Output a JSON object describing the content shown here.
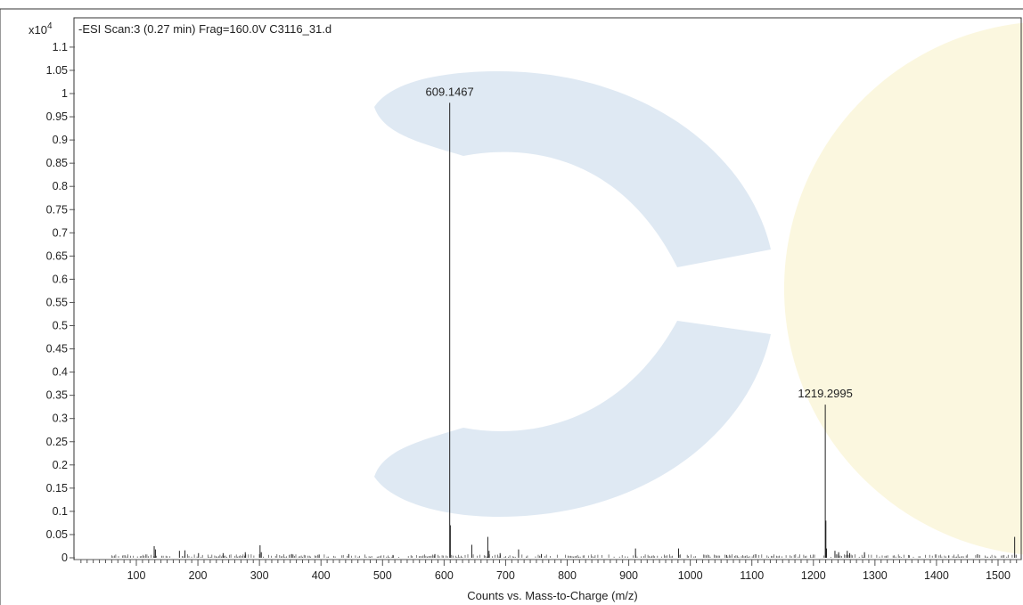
{
  "chart_data": {
    "type": "bar",
    "title": "-ESI Scan:3 (0.27 min) Frag=160.0V C3116_31.d",
    "xlabel": "Counts vs. Mass-to-Charge (m/z)",
    "ylabel": "",
    "y_multiplier_label": "x10",
    "y_multiplier_exp": "4",
    "xlim": [
      0,
      1530
    ],
    "ylim": [
      0,
      1.15
    ],
    "xticks": [
      100,
      200,
      300,
      400,
      500,
      600,
      700,
      800,
      900,
      1000,
      1100,
      1200,
      1300,
      1400,
      1500
    ],
    "yticks": [
      0,
      0.05,
      0.1,
      0.15,
      0.2,
      0.25,
      0.3,
      0.35,
      0.4,
      0.45,
      0.5,
      0.55,
      0.6,
      0.65,
      0.7,
      0.75,
      0.8,
      0.85,
      0.9,
      0.95,
      1,
      1.05,
      1.1
    ],
    "peaks": [
      {
        "mz": 609.1467,
        "intensity": 0.98,
        "label": "609.1467"
      },
      {
        "mz": 1219.2995,
        "intensity": 0.33,
        "label": "1219.2995"
      },
      {
        "mz": 610.15,
        "intensity": 0.07
      },
      {
        "mz": 1220.3,
        "intensity": 0.08
      },
      {
        "mz": 1221.3,
        "intensity": 0.02
      },
      {
        "mz": 129.0,
        "intensity": 0.025
      },
      {
        "mz": 131.0,
        "intensity": 0.018
      },
      {
        "mz": 170.0,
        "intensity": 0.015
      },
      {
        "mz": 179.0,
        "intensity": 0.016
      },
      {
        "mz": 201.0,
        "intensity": 0.01
      },
      {
        "mz": 241.0,
        "intensity": 0.01
      },
      {
        "mz": 277.0,
        "intensity": 0.012
      },
      {
        "mz": 301.0,
        "intensity": 0.027
      },
      {
        "mz": 303.0,
        "intensity": 0.012
      },
      {
        "mz": 353.0,
        "intensity": 0.008
      },
      {
        "mz": 397.0,
        "intensity": 0.007
      },
      {
        "mz": 445.0,
        "intensity": 0.008
      },
      {
        "mz": 517.0,
        "intensity": 0.006
      },
      {
        "mz": 585.0,
        "intensity": 0.008
      },
      {
        "mz": 645.0,
        "intensity": 0.028
      },
      {
        "mz": 671.0,
        "intensity": 0.045
      },
      {
        "mz": 673.0,
        "intensity": 0.015
      },
      {
        "mz": 691.0,
        "intensity": 0.01
      },
      {
        "mz": 721.0,
        "intensity": 0.018
      },
      {
        "mz": 758.0,
        "intensity": 0.008
      },
      {
        "mz": 911.0,
        "intensity": 0.02
      },
      {
        "mz": 981.0,
        "intensity": 0.02
      },
      {
        "mz": 1059.0,
        "intensity": 0.006
      },
      {
        "mz": 1235.0,
        "intensity": 0.015
      },
      {
        "mz": 1241.0,
        "intensity": 0.012
      },
      {
        "mz": 1255.0,
        "intensity": 0.015
      },
      {
        "mz": 1259.0,
        "intensity": 0.01
      },
      {
        "mz": 1283.0,
        "intensity": 0.012
      },
      {
        "mz": 1355.0,
        "intensity": 0.006
      },
      {
        "mz": 1420.0,
        "intensity": 0.005
      },
      {
        "mz": 1527.0,
        "intensity": 0.045
      }
    ],
    "noise_range": [
      60,
      1530
    ],
    "grid": false,
    "colors": {
      "line": "#222222",
      "axis": "#555555",
      "frame": "#333333",
      "watermark_blue": "#dbe7f2",
      "watermark_yellow": "#fbf6dc"
    }
  }
}
